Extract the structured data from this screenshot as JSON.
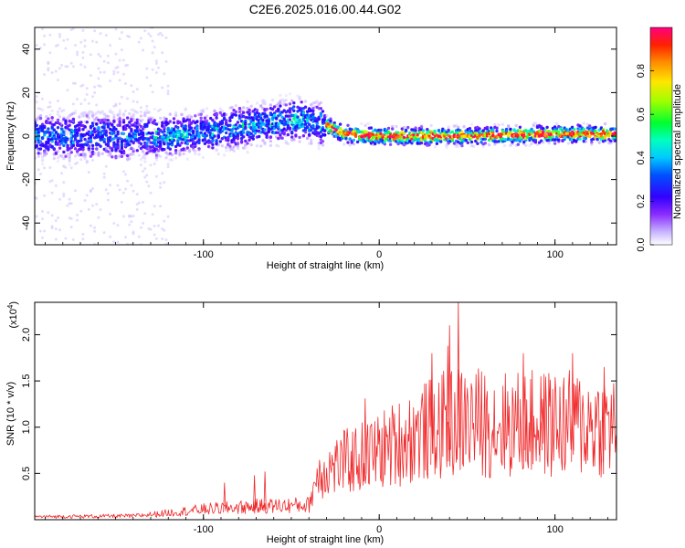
{
  "title": "C2E6.2025.016.00.44.G02",
  "chart_data": [
    {
      "type": "heatmap",
      "xlabel": "Height of straight line (km)",
      "ylabel": "Frequency (Hz)",
      "xlim": [
        -196,
        135
      ],
      "ylim": [
        -50,
        50
      ],
      "xticks": [
        -100,
        0,
        100
      ],
      "yticks": [
        -40,
        -20,
        0,
        20,
        40
      ],
      "colorbar": {
        "label": "Normalized spectral amplitude",
        "range": [
          0,
          1
        ],
        "ticks": [
          "0.0",
          "0.2",
          "0.4",
          "0.6",
          "0.8"
        ],
        "colors": [
          "#ffffff",
          "#b9a2ff",
          "#7a1cff",
          "#2b00ff",
          "#0a3cff",
          "#00b0ff",
          "#00ffd0",
          "#00ff40",
          "#8cff00",
          "#ffea00",
          "#ff9400",
          "#ff2a00",
          "#ff0b4a",
          "#ff0080"
        ]
      },
      "ridge": [
        {
          "x": -190,
          "y": 0
        },
        {
          "x": -150,
          "y": 0
        },
        {
          "x": -120,
          "y": 0
        },
        {
          "x": -100,
          "y": 2
        },
        {
          "x": -80,
          "y": 4
        },
        {
          "x": -60,
          "y": 6
        },
        {
          "x": -50,
          "y": 8
        },
        {
          "x": -40,
          "y": 7
        },
        {
          "x": -30,
          "y": 5
        },
        {
          "x": -20,
          "y": 1
        },
        {
          "x": 0,
          "y": 0
        },
        {
          "x": 50,
          "y": 0
        },
        {
          "x": 100,
          "y": 1
        },
        {
          "x": 135,
          "y": 1
        }
      ]
    },
    {
      "type": "line",
      "xlabel": "Height of straight line (km)",
      "ylabel": "SNR (10 * v/v)",
      "multiplier": "(x10",
      "multiplier_exp": "4",
      "multiplier_close": ")",
      "xlim": [
        -196,
        135
      ],
      "ylim": [
        0,
        2.35
      ],
      "xticks": [
        -100,
        0,
        100
      ],
      "yticks": [
        "0.5",
        "1.0",
        "1.5",
        "2.0"
      ],
      "color": "#f0282a",
      "envelope": [
        {
          "x": -196,
          "y": 0.04
        },
        {
          "x": -140,
          "y": 0.05
        },
        {
          "x": -125,
          "y": 0.08
        },
        {
          "x": -100,
          "y": 0.14
        },
        {
          "x": -70,
          "y": 0.18
        },
        {
          "x": -40,
          "y": 0.2
        },
        {
          "x": -35,
          "y": 0.6
        },
        {
          "x": -20,
          "y": 0.75
        },
        {
          "x": -5,
          "y": 0.85
        },
        {
          "x": 10,
          "y": 1.0
        },
        {
          "x": 25,
          "y": 1.15
        },
        {
          "x": 45,
          "y": 1.3
        },
        {
          "x": 70,
          "y": 1.25
        },
        {
          "x": 100,
          "y": 1.25
        },
        {
          "x": 135,
          "y": 1.25
        }
      ],
      "peaks": [
        {
          "x": 40,
          "y": 2.1
        },
        {
          "x": 45,
          "y": 2.35
        },
        {
          "x": 39,
          "y": 1.88
        },
        {
          "x": 30,
          "y": 1.8
        },
        {
          "x": -8,
          "y": 1.31
        },
        {
          "x": 82,
          "y": 1.8
        },
        {
          "x": 92,
          "y": 1.55
        },
        {
          "x": 110,
          "y": 1.8
        },
        {
          "x": 128,
          "y": 1.65
        },
        {
          "x": -65,
          "y": 0.52
        },
        {
          "x": -71,
          "y": 0.48
        },
        {
          "x": -88,
          "y": 0.4
        }
      ]
    }
  ]
}
